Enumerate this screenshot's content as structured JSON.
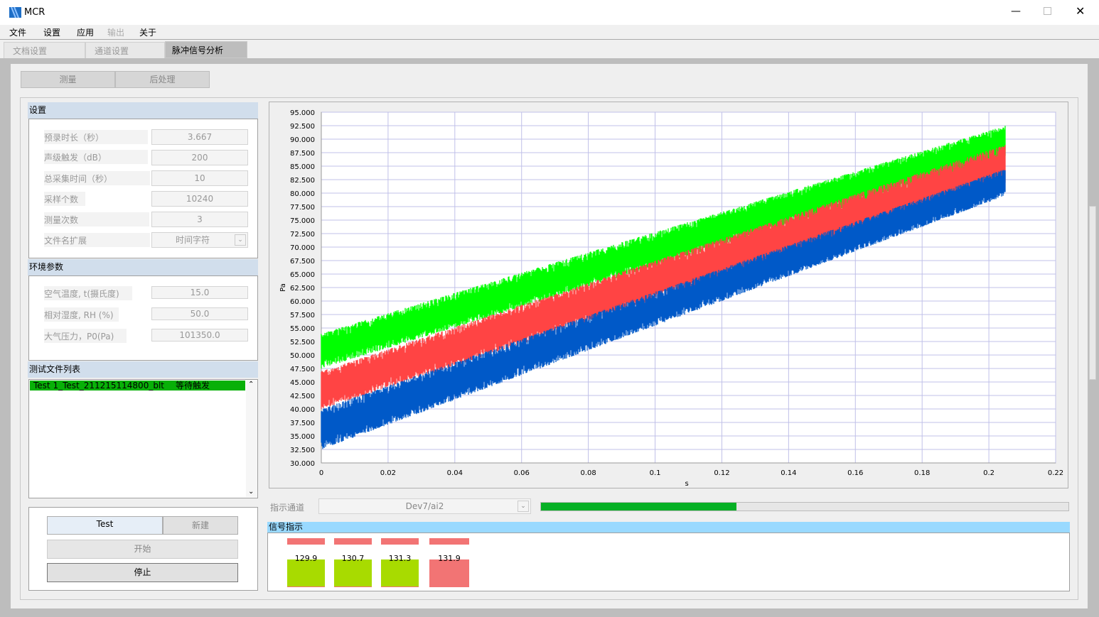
{
  "window": {
    "title": "MCR",
    "minimize_icon": "minimize-icon",
    "maximize_icon": "maximize-icon",
    "close_icon": "close-icon"
  },
  "menu": [
    "文件",
    "设置",
    "应用",
    "输出",
    "关于"
  ],
  "tabs": [
    "文档设置",
    "通道设置",
    "脉冲信号分析"
  ],
  "subtabs": [
    "测量",
    "后处理"
  ],
  "settings": {
    "header": "设置",
    "rows": [
      {
        "label": "预录时长（秒）",
        "value": "3.667"
      },
      {
        "label": "声级触发（dB）",
        "value": "200"
      },
      {
        "label": "总采集时间（秒）",
        "value": "10"
      },
      {
        "label": "采样个数",
        "value": "10240"
      },
      {
        "label": "测量次数",
        "value": "3"
      },
      {
        "label": "文件名扩展",
        "value": "时间字符"
      }
    ]
  },
  "env": {
    "header": "环境参数",
    "rows": [
      {
        "label": "空气温度, t(摄氏度)",
        "value": "15.0"
      },
      {
        "label": "相对湿度, RH (%)",
        "value": "50.0"
      },
      {
        "label": "大气压力，P0(Pa)",
        "value": "101350.0"
      }
    ]
  },
  "files": {
    "header": "测试文件列表",
    "items": [
      {
        "name": "Test 1_Test_211215114800_blt",
        "status": "等待触发"
      }
    ]
  },
  "actions": {
    "test": "Test",
    "new": "新建",
    "start": "开始",
    "stop": "停止"
  },
  "channel": {
    "label": "指示通道",
    "value": "Dev7/ai2",
    "progress_percent": 37,
    "progress_color": "#06b025"
  },
  "signal": {
    "header": "信号指示",
    "indicators": [
      {
        "value": "129.9",
        "color": "#a8db00"
      },
      {
        "value": "130.7",
        "color": "#a8db00"
      },
      {
        "value": "131.3",
        "color": "#a8db00"
      },
      {
        "value": "131.9",
        "color": "#f27474"
      }
    ]
  },
  "chart_data": {
    "type": "line",
    "xlabel": "s",
    "ylabel": "Pa",
    "xlim": [
      0,
      0.22
    ],
    "ylim": [
      30,
      95
    ],
    "xticks": [
      "0",
      "0.02",
      "0.04",
      "0.06",
      "0.08",
      "0.1",
      "0.12",
      "0.14",
      "0.16",
      "0.18",
      "0.2",
      "0.22"
    ],
    "yticks": [
      "30.000",
      "32.500",
      "35.000",
      "37.500",
      "40.000",
      "42.500",
      "45.000",
      "47.500",
      "50.000",
      "52.500",
      "55.000",
      "57.500",
      "60.000",
      "62.500",
      "65.000",
      "67.500",
      "70.000",
      "72.500",
      "75.000",
      "77.500",
      "80.000",
      "82.500",
      "85.000",
      "87.500",
      "90.000",
      "92.500",
      "95.000"
    ],
    "grid": true,
    "series": [
      {
        "color": "#00ff00",
        "x_range": [
          0,
          0.205
        ],
        "band_start": [
          47.5,
          54
        ],
        "band_end": [
          86.4,
          92.5
        ]
      },
      {
        "color": "#ff4444",
        "x_range": [
          0,
          0.205
        ],
        "band_start": [
          40,
          47
        ],
        "band_end": [
          81,
          89
        ]
      },
      {
        "color": "#0059c8",
        "x_range": [
          0,
          0.205
        ],
        "band_start": [
          32.5,
          40
        ],
        "band_end": [
          79.5,
          84.5
        ]
      }
    ]
  }
}
